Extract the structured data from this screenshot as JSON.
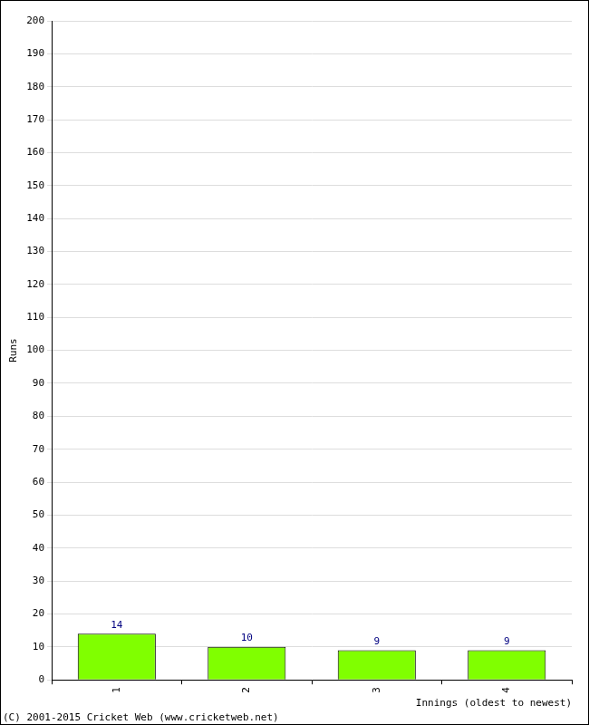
{
  "chart_data": {
    "type": "bar",
    "categories": [
      "1",
      "2",
      "3",
      "4"
    ],
    "values": [
      14,
      10,
      9,
      9
    ],
    "color": "#80ff00",
    "x_label": "Innings (oldest to newest)",
    "y_label": "Runs",
    "annotation": "(C) 2001-2015 Cricket Web (www.cricketweb.net)",
    "ylim": [
      0,
      200
    ],
    "yticks": [
      0,
      10,
      20,
      30,
      40,
      50,
      60,
      70,
      80,
      90,
      100,
      110,
      120,
      130,
      140,
      150,
      160,
      170,
      180,
      190,
      200
    ],
    "grid": true,
    "data_labels": true
  }
}
